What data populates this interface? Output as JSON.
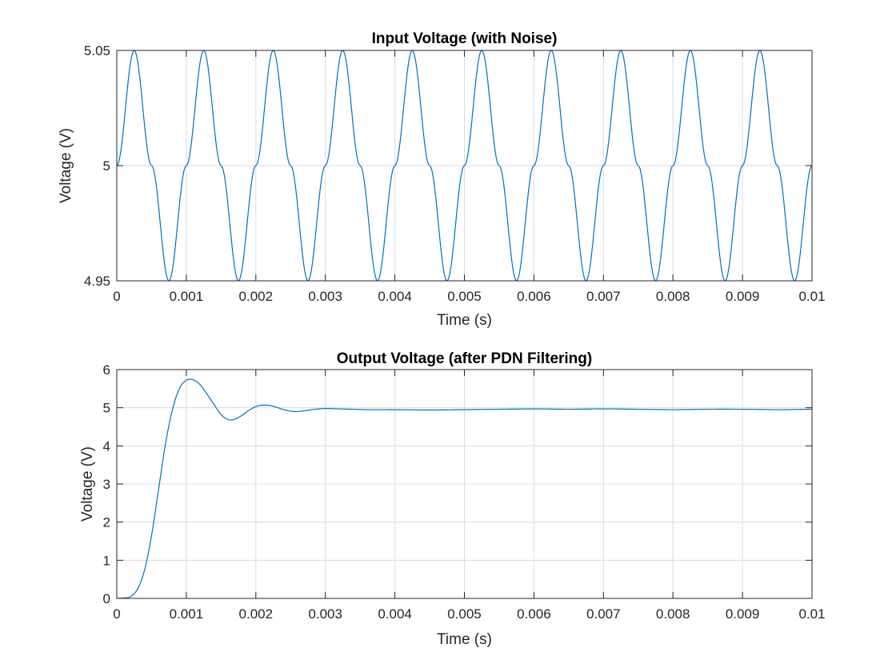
{
  "figure": {
    "background": "#ffffff"
  },
  "chart_data": [
    {
      "type": "line",
      "title": "Input Voltage (with Noise)",
      "xlabel": "Time (s)",
      "ylabel": "Voltage (V)",
      "xlim": [
        0,
        0.01
      ],
      "ylim": [
        4.95,
        5.05
      ],
      "xticks": [
        0,
        0.001,
        0.002,
        0.003,
        0.004,
        0.005,
        0.006,
        0.007,
        0.008,
        0.009,
        0.01
      ],
      "xtick_labels": [
        "0",
        "0.001",
        "0.002",
        "0.003",
        "0.004",
        "0.005",
        "0.006",
        "0.007",
        "0.008",
        "0.009",
        "0.01"
      ],
      "yticks": [
        4.95,
        5,
        5.05
      ],
      "ytick_labels": [
        "4.95",
        "5",
        "5.05"
      ],
      "grid": true,
      "series": [
        {
          "color": "#0072bd",
          "x": [
            0,
            0.00025,
            0.0005,
            0.00075,
            0.001,
            0.00125,
            0.0015,
            0.00175,
            0.002,
            0.00225,
            0.0025,
            0.00275,
            0.003,
            0.00325,
            0.0035,
            0.00375,
            0.004,
            0.00425,
            0.0045,
            0.00475,
            0.005,
            0.00525,
            0.0055,
            0.00575,
            0.006,
            0.00625,
            0.0065,
            0.00675,
            0.007,
            0.00725,
            0.0075,
            0.00775,
            0.008,
            0.00825,
            0.0085,
            0.00875,
            0.009,
            0.00925,
            0.0095,
            0.00975,
            0.01
          ],
          "y": [
            5.0,
            5.05,
            5.0,
            4.95,
            5.0,
            5.05,
            5.0,
            4.95,
            5.0,
            5.05,
            5.0,
            4.95,
            5.0,
            5.05,
            5.0,
            4.95,
            5.0,
            5.05,
            5.0,
            4.95,
            5.0,
            5.05,
            5.0,
            4.95,
            5.0,
            5.05,
            5.0,
            4.95,
            5.0,
            5.05,
            5.0,
            4.95,
            5.0,
            5.05,
            5.0,
            4.95,
            5.0,
            5.05,
            5.0,
            4.95,
            5.0
          ],
          "interpolation": "sinusoidal"
        }
      ]
    },
    {
      "type": "line",
      "title": "Output Voltage (after PDN Filtering)",
      "xlabel": "Time (s)",
      "ylabel": "Voltage (V)",
      "xlim": [
        0,
        0.01
      ],
      "ylim": [
        0,
        6
      ],
      "xticks": [
        0,
        0.001,
        0.002,
        0.003,
        0.004,
        0.005,
        0.006,
        0.007,
        0.008,
        0.009,
        0.01
      ],
      "xtick_labels": [
        "0",
        "0.001",
        "0.002",
        "0.003",
        "0.004",
        "0.005",
        "0.006",
        "0.007",
        "0.008",
        "0.009",
        "0.01"
      ],
      "yticks": [
        0,
        1,
        2,
        3,
        4,
        5,
        6
      ],
      "ytick_labels": [
        "0",
        "1",
        "2",
        "3",
        "4",
        "5",
        "6"
      ],
      "grid": true,
      "series": [
        {
          "color": "#0072bd",
          "x": [
            0,
            0.0001,
            0.0002,
            0.0003,
            0.0004,
            0.0005,
            0.0006,
            0.0007,
            0.0008,
            0.0009,
            0.001,
            0.0011,
            0.0012,
            0.0013,
            0.0014,
            0.0015,
            0.0016,
            0.0017,
            0.0018,
            0.0019,
            0.002,
            0.0021,
            0.0022,
            0.0023,
            0.0024,
            0.0025,
            0.0026,
            0.0027,
            0.0028,
            0.0029,
            0.003,
            0.0032,
            0.0034,
            0.0036,
            0.0038,
            0.004,
            0.0045,
            0.005,
            0.0055,
            0.006,
            0.0065,
            0.007,
            0.0075,
            0.008,
            0.0085,
            0.009,
            0.0095,
            0.01
          ],
          "y": [
            0,
            0.01,
            0.05,
            0.25,
            0.75,
            1.65,
            2.85,
            4.05,
            4.95,
            5.5,
            5.72,
            5.73,
            5.6,
            5.35,
            5.08,
            4.82,
            4.69,
            4.7,
            4.8,
            4.93,
            5.03,
            5.07,
            5.06,
            5.01,
            4.95,
            4.91,
            4.9,
            4.92,
            4.95,
            4.97,
            4.98,
            4.97,
            4.96,
            4.95,
            4.95,
            4.95,
            4.94,
            4.95,
            4.96,
            4.97,
            4.96,
            4.97,
            4.96,
            4.95,
            4.96,
            4.96,
            4.95,
            4.96
          ],
          "interpolation": "smooth"
        }
      ]
    }
  ]
}
